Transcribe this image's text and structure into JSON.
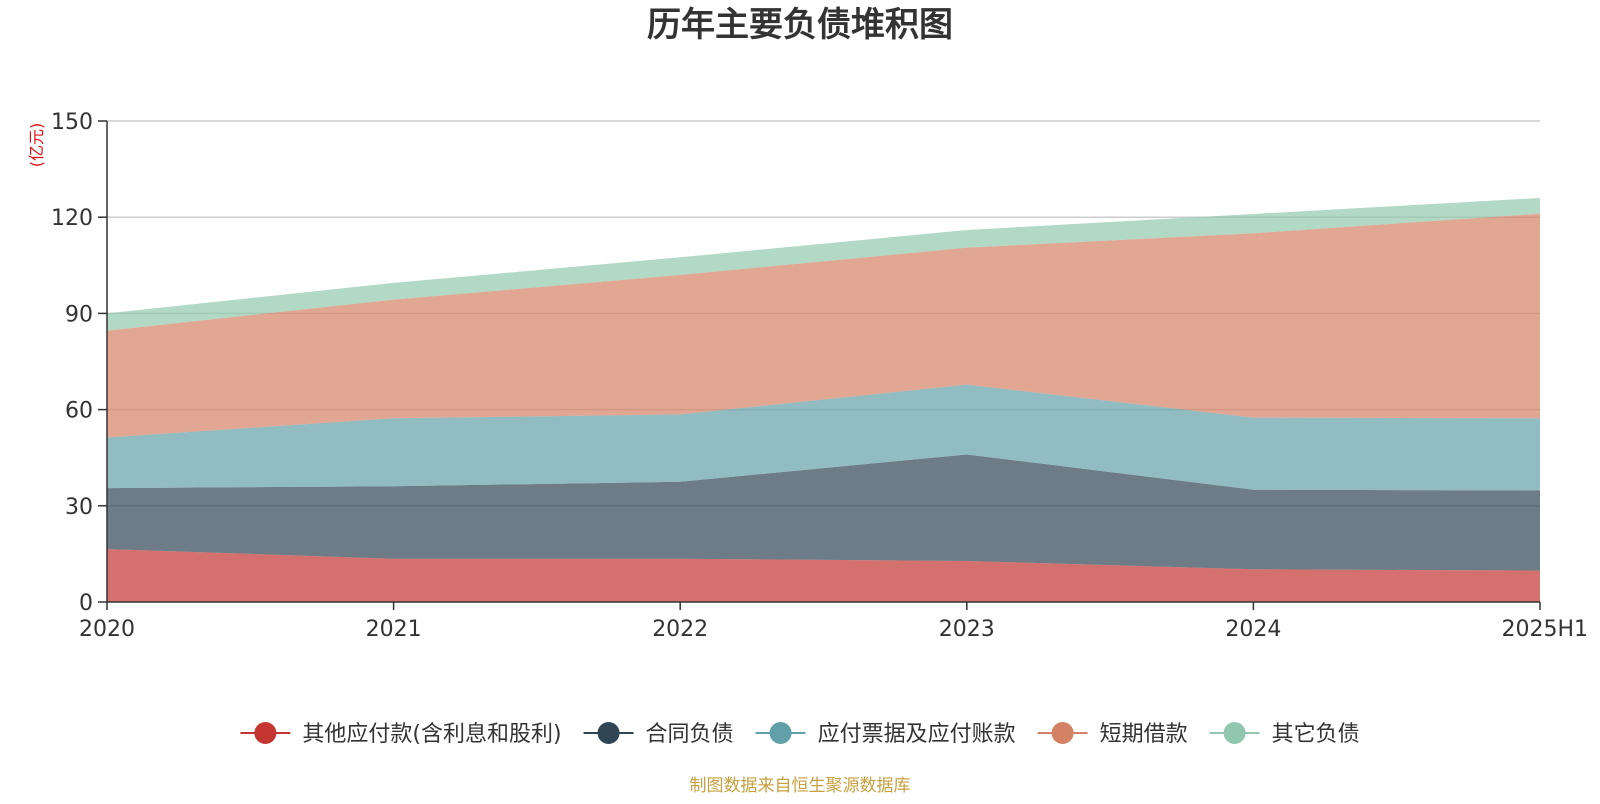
{
  "chart_data": {
    "type": "area",
    "stacked": true,
    "title": "历年主要负债堆积图",
    "ylabel": "(亿元)",
    "xlabel": "",
    "categories": [
      "2020",
      "2021",
      "2022",
      "2023",
      "2024",
      "2025H1"
    ],
    "ylim": [
      0,
      150
    ],
    "yticks": [
      0,
      30,
      60,
      90,
      120,
      150
    ],
    "grid": true,
    "legend_position": "bottom",
    "series": [
      {
        "name": "其他应付款(含利息和股利)",
        "color": "#c23531",
        "values": [
          16.5,
          13.5,
          13.5,
          12.8,
          10.2,
          9.8
        ]
      },
      {
        "name": "合同负债",
        "color": "#2f4554",
        "values": [
          19.0,
          22.6,
          24.0,
          33.2,
          24.8,
          25.0
        ]
      },
      {
        "name": "应付票据及应付账款",
        "color": "#61a0a8",
        "values": [
          15.8,
          21.2,
          21.0,
          21.8,
          22.5,
          22.5
        ]
      },
      {
        "name": "短期借款",
        "color": "#d48265",
        "values": [
          33.3,
          37.0,
          43.5,
          42.7,
          57.5,
          63.8
        ]
      },
      {
        "name": "其它负债",
        "color": "#91c7ae",
        "values": [
          5.4,
          5.2,
          5.5,
          5.5,
          6.0,
          4.9
        ]
      }
    ]
  },
  "footer": {
    "source": "制图数据来自恒生聚源数据库"
  }
}
